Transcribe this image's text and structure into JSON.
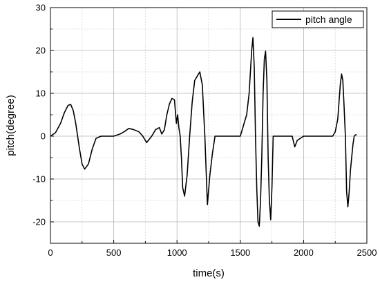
{
  "chart_data": {
    "type": "line",
    "xlabel": "time(s)",
    "ylabel": "pitch(degree)",
    "xlim": [
      0,
      2500
    ],
    "ylim": [
      -25,
      30
    ],
    "x_ticks": [
      0,
      500,
      1000,
      1500,
      2000,
      2500
    ],
    "y_ticks": [
      -20,
      -10,
      0,
      10,
      20,
      30
    ],
    "grid": true,
    "legend": "top-right",
    "series": [
      {
        "name": "pitch angle",
        "color": "#000000",
        "x": [
          0,
          40,
          80,
          110,
          140,
          160,
          180,
          200,
          230,
          250,
          270,
          300,
          330,
          360,
          400,
          450,
          500,
          550,
          580,
          620,
          660,
          700,
          730,
          760,
          800,
          830,
          860,
          880,
          900,
          920,
          940,
          960,
          980,
          995,
          1005,
          1015,
          1025,
          1035,
          1045,
          1060,
          1080,
          1100,
          1120,
          1140,
          1160,
          1180,
          1200,
          1220,
          1240,
          1260,
          1280,
          1300,
          1350,
          1400,
          1450,
          1500,
          1550,
          1570,
          1590,
          1600,
          1610,
          1620,
          1630,
          1640,
          1650,
          1660,
          1670,
          1680,
          1690,
          1700,
          1710,
          1720,
          1730,
          1740,
          1750,
          1760,
          1780,
          1800,
          1830,
          1860,
          1890,
          1910,
          1930,
          1950,
          2000,
          2050,
          2100,
          2150,
          2200,
          2230,
          2250,
          2270,
          2290,
          2300,
          2310,
          2320,
          2330,
          2340,
          2350,
          2360,
          2370,
          2380,
          2390,
          2400,
          2410,
          2420
        ],
        "y": [
          0,
          0.8,
          3,
          5.5,
          7.2,
          7.4,
          6,
          3,
          -3,
          -6.5,
          -7.7,
          -6.5,
          -3,
          -0.5,
          0,
          0,
          0,
          0.5,
          1,
          1.8,
          1.5,
          1,
          0,
          -1.5,
          0,
          1.5,
          2,
          0.5,
          1.5,
          5,
          7.5,
          8.8,
          8.5,
          3,
          5,
          2,
          0,
          -5,
          -12,
          -14,
          -9,
          0,
          8,
          13,
          14,
          15,
          12,
          0,
          -16,
          -9,
          -4,
          0,
          0,
          0,
          0,
          0,
          5,
          10,
          20,
          23,
          16,
          0,
          -12,
          -20,
          -21,
          -15,
          -5,
          10,
          18,
          19.8,
          13,
          -5,
          -15,
          -19.5,
          -12,
          0,
          0,
          0,
          0,
          0,
          0,
          0,
          -2.5,
          -1,
          0,
          0,
          0,
          0,
          0,
          0,
          1,
          4,
          12,
          14.5,
          13,
          7,
          0,
          -13,
          -16.5,
          -13,
          -8,
          -5,
          -2,
          0,
          0.3,
          0.3
        ]
      }
    ]
  }
}
